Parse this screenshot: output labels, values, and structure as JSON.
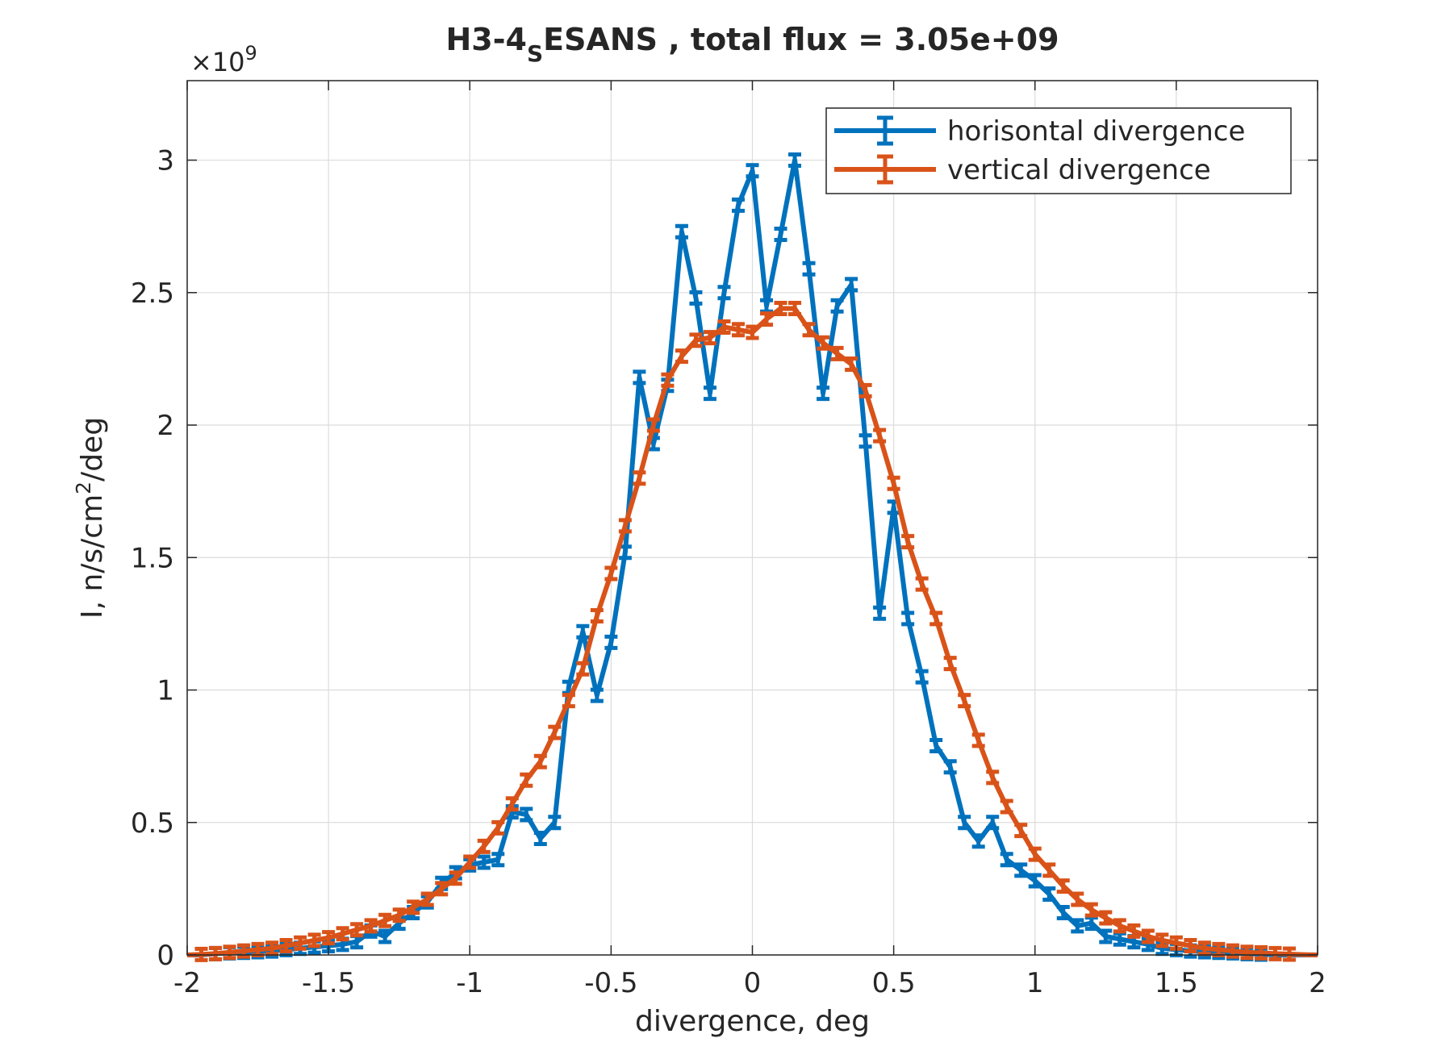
{
  "chart_data": {
    "type": "line",
    "title": {
      "main": "H3-4",
      "subscript": "S",
      "rest": "ESANS , total flux =  3.05e+09"
    },
    "xlabel": "divergence, deg",
    "ylabel": {
      "main": "I, n/s/cm",
      "superscript": "2",
      "rest": "/deg"
    },
    "y_multiplier": {
      "symbol": "×10",
      "exponent": "9"
    },
    "xlim": [
      -2,
      2
    ],
    "ylim": [
      0,
      3.3
    ],
    "xticks": [
      -2,
      -1.5,
      -1,
      -0.5,
      0,
      0.5,
      1,
      1.5,
      2
    ],
    "xtick_labels": [
      "-2",
      "-1.5",
      "-1",
      "-0.5",
      "0",
      "0.5",
      "1",
      "1.5",
      "2"
    ],
    "yticks": [
      0,
      0.5,
      1,
      1.5,
      2,
      2.5,
      3
    ],
    "ytick_labels": [
      "0",
      "0.5",
      "1",
      "1.5",
      "2",
      "2.5",
      "3"
    ],
    "grid": true,
    "legend_position": "top-right",
    "x": [
      -2.0,
      -1.95,
      -1.9,
      -1.85,
      -1.8,
      -1.75,
      -1.7,
      -1.65,
      -1.6,
      -1.55,
      -1.5,
      -1.45,
      -1.4,
      -1.35,
      -1.3,
      -1.25,
      -1.2,
      -1.15,
      -1.1,
      -1.05,
      -1.0,
      -0.95,
      -0.9,
      -0.85,
      -0.8,
      -0.75,
      -0.7,
      -0.65,
      -0.6,
      -0.55,
      -0.5,
      -0.45,
      -0.4,
      -0.35,
      -0.3,
      -0.25,
      -0.2,
      -0.15,
      -0.1,
      -0.05,
      0.0,
      0.05,
      0.1,
      0.15,
      0.2,
      0.25,
      0.3,
      0.35,
      0.4,
      0.45,
      0.5,
      0.55,
      0.6,
      0.65,
      0.7,
      0.75,
      0.8,
      0.85,
      0.9,
      0.95,
      1.0,
      1.05,
      1.1,
      1.15,
      1.2,
      1.25,
      1.3,
      1.35,
      1.4,
      1.45,
      1.5,
      1.55,
      1.6,
      1.65,
      1.7,
      1.75,
      1.8,
      1.85,
      1.9,
      1.95,
      2.0
    ],
    "series": [
      {
        "name": "horisontal divergence",
        "color": "#0072BD",
        "values": [
          0.0,
          0.0,
          0.005,
          0.008,
          0.01,
          0.012,
          0.015,
          0.02,
          0.025,
          0.03,
          0.035,
          0.04,
          0.05,
          0.09,
          0.07,
          0.12,
          0.16,
          0.2,
          0.27,
          0.31,
          0.34,
          0.35,
          0.36,
          0.54,
          0.53,
          0.44,
          0.5,
          1.01,
          1.22,
          0.98,
          1.18,
          1.52,
          2.18,
          1.93,
          2.15,
          2.73,
          2.48,
          2.12,
          2.5,
          2.83,
          2.96,
          2.45,
          2.72,
          3.0,
          2.59,
          2.12,
          2.45,
          2.53,
          1.94,
          1.29,
          1.69,
          1.27,
          1.05,
          0.79,
          0.71,
          0.5,
          0.43,
          0.5,
          0.36,
          0.32,
          0.28,
          0.23,
          0.16,
          0.11,
          0.12,
          0.07,
          0.06,
          0.05,
          0.04,
          0.025,
          0.02,
          0.015,
          0.012,
          0.01,
          0.008,
          0.005,
          0.003,
          0.0,
          0.0,
          0.0,
          0.0
        ]
      },
      {
        "name": "vertical divergence",
        "color": "#D95319",
        "values": [
          0.0,
          0.002,
          0.005,
          0.01,
          0.015,
          0.02,
          0.025,
          0.035,
          0.045,
          0.055,
          0.065,
          0.08,
          0.095,
          0.11,
          0.13,
          0.15,
          0.18,
          0.21,
          0.25,
          0.29,
          0.35,
          0.41,
          0.48,
          0.57,
          0.66,
          0.73,
          0.84,
          0.96,
          1.08,
          1.28,
          1.44,
          1.62,
          1.8,
          2.0,
          2.17,
          2.26,
          2.32,
          2.33,
          2.37,
          2.36,
          2.35,
          2.4,
          2.44,
          2.44,
          2.36,
          2.31,
          2.27,
          2.23,
          2.13,
          1.96,
          1.78,
          1.56,
          1.4,
          1.27,
          1.1,
          0.96,
          0.81,
          0.67,
          0.56,
          0.47,
          0.38,
          0.32,
          0.26,
          0.21,
          0.17,
          0.14,
          0.11,
          0.09,
          0.07,
          0.055,
          0.045,
          0.035,
          0.025,
          0.02,
          0.015,
          0.01,
          0.008,
          0.005,
          0.003,
          0.001,
          0.0
        ]
      }
    ]
  }
}
